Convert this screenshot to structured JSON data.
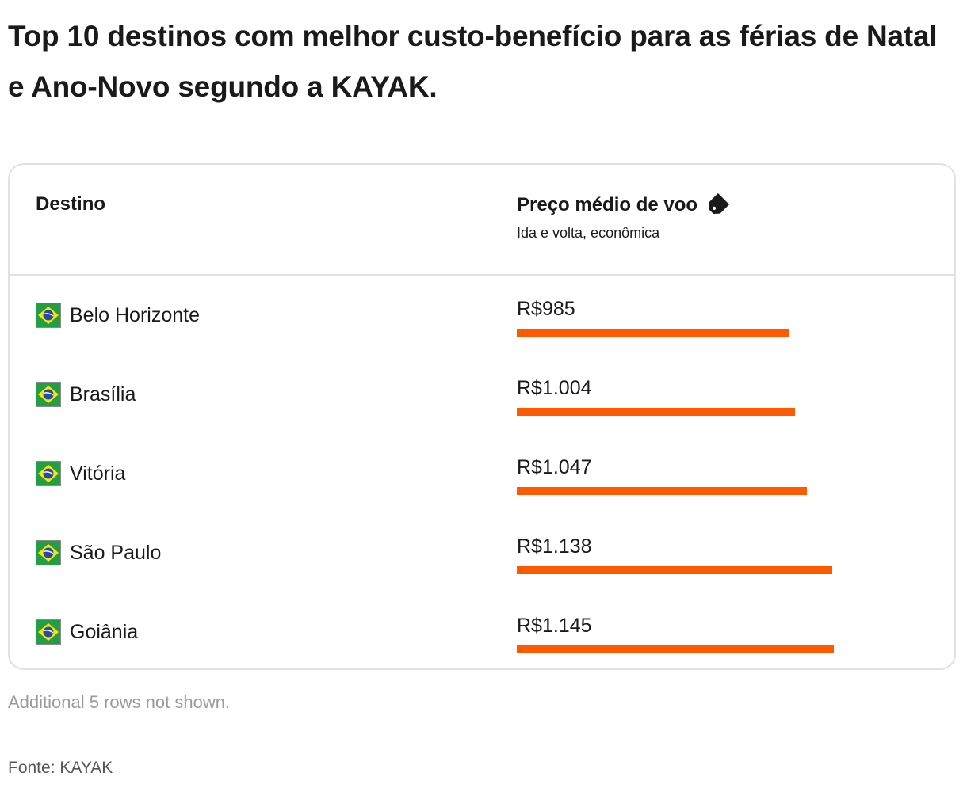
{
  "title": "Top 10 destinos com melhor custo-benefício para as férias de Natal e Ano-Novo segundo a KAYAK.",
  "table": {
    "col_destination": "Destino",
    "col_price": "Preço médio de voo",
    "col_price_sub": "Ida e volta, econômica",
    "price_icon": "price-tag-icon",
    "flag_icon": "brazil-flag-icon"
  },
  "colors": {
    "bar": "#ff5a00",
    "border": "#e1e1e1"
  },
  "chart_data": {
    "type": "bar",
    "orientation": "horizontal",
    "categories": [
      "Belo Horizonte",
      "Brasília",
      "Vitória",
      "São Paulo",
      "Goiânia"
    ],
    "values": [
      985,
      1004,
      1047,
      1138,
      1145
    ],
    "value_labels": [
      "R$985",
      "R$1.004",
      "R$1.047",
      "R$1.138",
      "R$1.145"
    ],
    "xlim": [
      0,
      1145
    ]
  },
  "footer": {
    "note": "Additional 5 rows not shown.",
    "source": "Fonte: KAYAK"
  }
}
